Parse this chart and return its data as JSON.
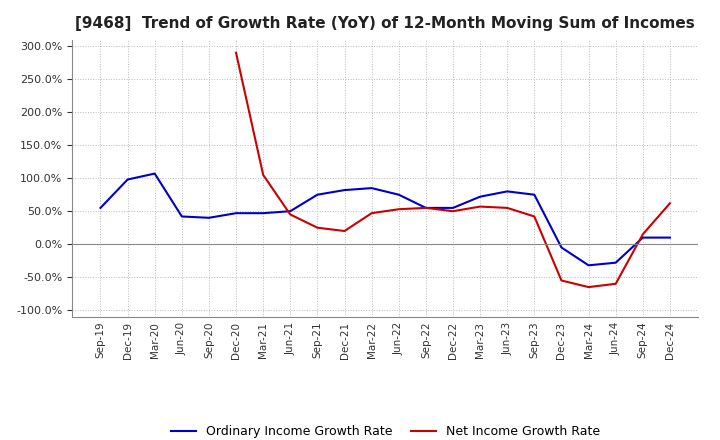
{
  "title": "[9468]  Trend of Growth Rate (YoY) of 12-Month Moving Sum of Incomes",
  "title_fontsize": 11,
  "background_color": "#ffffff",
  "grid_color": "#bbbbbb",
  "ylim": [
    -110,
    310
  ],
  "yticks": [
    -100,
    -50,
    0,
    50,
    100,
    150,
    200,
    250,
    300
  ],
  "legend_labels": [
    "Ordinary Income Growth Rate",
    "Net Income Growth Rate"
  ],
  "legend_colors": [
    "#0000cc",
    "#cc0000"
  ],
  "x_labels": [
    "Sep-19",
    "Dec-19",
    "Mar-20",
    "Jun-20",
    "Sep-20",
    "Dec-20",
    "Mar-21",
    "Jun-21",
    "Sep-21",
    "Dec-21",
    "Mar-22",
    "Jun-22",
    "Sep-22",
    "Dec-22",
    "Mar-23",
    "Jun-23",
    "Sep-23",
    "Dec-23",
    "Mar-24",
    "Jun-24",
    "Sep-24",
    "Dec-24"
  ],
  "ordinary_income": [
    55,
    98,
    107,
    42,
    40,
    47,
    47,
    50,
    75,
    82,
    85,
    75,
    55,
    55,
    72,
    80,
    75,
    -5,
    -32,
    -28,
    10,
    10
  ],
  "net_income": [
    null,
    null,
    null,
    null,
    null,
    290,
    105,
    45,
    25,
    20,
    47,
    53,
    55,
    50,
    57,
    55,
    42,
    -55,
    -65,
    -60,
    15,
    62
  ]
}
